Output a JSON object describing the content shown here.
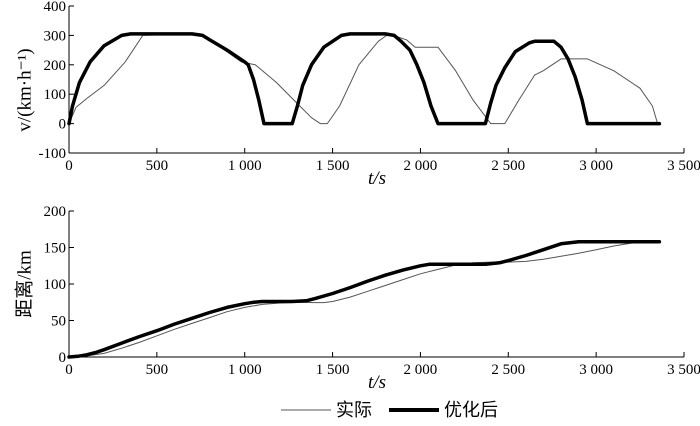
{
  "chart_data": [
    {
      "type": "line",
      "title": "",
      "xlabel": "t/s",
      "ylabel": "v/(km·h⁻¹)",
      "xlim": [
        0,
        3500
      ],
      "ylim": [
        -100,
        400
      ],
      "grid": false,
      "x_ticks": [
        0,
        500,
        1000,
        1500,
        2000,
        2500,
        3000,
        3500
      ],
      "x_tick_labels": [
        "0",
        "500",
        "1 000",
        "1 500",
        "2 000",
        "2 500",
        "3 000",
        "3 500"
      ],
      "y_ticks": [
        -100,
        0,
        100,
        200,
        300,
        400
      ],
      "y_tick_labels": [
        "-100",
        "0",
        "100",
        "200",
        "300",
        "400"
      ],
      "series": [
        {
          "name": "实际",
          "style": "thin",
          "x": [
            0,
            40,
            100,
            200,
            320,
            420,
            700,
            740,
            850,
            980,
            1060,
            1180,
            1280,
            1380,
            1430,
            1470,
            1540,
            1650,
            1760,
            1820,
            1920,
            1970,
            2100,
            2200,
            2300,
            2400,
            2440,
            2480,
            2560,
            2650,
            2700,
            2800,
            2900,
            2950,
            3100,
            3250,
            3320,
            3350
          ],
          "y": [
            0,
            55,
            85,
            130,
            210,
            300,
            305,
            305,
            265,
            210,
            200,
            140,
            80,
            20,
            0,
            0,
            60,
            200,
            280,
            305,
            285,
            260,
            260,
            180,
            80,
            0,
            0,
            0,
            80,
            165,
            180,
            220,
            220,
            220,
            180,
            120,
            60,
            0
          ]
        },
        {
          "name": "优化后",
          "style": "thick",
          "x": [
            0,
            20,
            60,
            120,
            200,
            300,
            350,
            400,
            500,
            600,
            700,
            760,
            800,
            900,
            1000,
            1020,
            1050,
            1080,
            1110,
            1270,
            1300,
            1330,
            1380,
            1450,
            1550,
            1600,
            1650,
            1800,
            1850,
            1890,
            1940,
            1980,
            2020,
            2060,
            2100,
            2370,
            2400,
            2430,
            2480,
            2540,
            2620,
            2650,
            2700,
            2760,
            2800,
            2840,
            2880,
            2920,
            2950,
            3360
          ],
          "y": [
            0,
            60,
            140,
            210,
            265,
            300,
            305,
            305,
            305,
            305,
            305,
            300,
            285,
            250,
            210,
            200,
            150,
            80,
            0,
            0,
            60,
            130,
            200,
            260,
            300,
            305,
            305,
            305,
            300,
            280,
            250,
            200,
            140,
            60,
            0,
            0,
            70,
            130,
            190,
            245,
            275,
            280,
            280,
            280,
            260,
            220,
            160,
            80,
            0,
            0
          ]
        }
      ]
    },
    {
      "type": "line",
      "title": "",
      "xlabel": "t/s",
      "ylabel": "距离/km",
      "xlim": [
        0,
        3500
      ],
      "ylim": [
        0,
        200
      ],
      "grid": false,
      "x_ticks": [
        0,
        500,
        1000,
        1500,
        2000,
        2500,
        3000,
        3500
      ],
      "x_tick_labels": [
        "0",
        "500",
        "1 000",
        "1 500",
        "2 000",
        "2 500",
        "3 000",
        "3 500"
      ],
      "y_ticks": [
        0,
        50,
        100,
        150,
        200
      ],
      "y_tick_labels": [
        "0",
        "50",
        "100",
        "150",
        "200"
      ],
      "series": [
        {
          "name": "实际",
          "style": "thin",
          "x": [
            0,
            100,
            200,
            300,
            400,
            500,
            600,
            700,
            800,
            900,
            1000,
            1100,
            1200,
            1300,
            1400,
            1450,
            1500,
            1600,
            1700,
            1800,
            1900,
            2000,
            2100,
            2200,
            2300,
            2400,
            2500,
            2600,
            2700,
            2800,
            2900,
            3000,
            3100,
            3200,
            3300,
            3350
          ],
          "y": [
            0,
            1.5,
            5,
            12,
            20,
            29,
            38,
            46,
            54,
            62,
            68,
            72,
            74,
            75,
            74.5,
            74.5,
            76,
            82,
            90,
            98,
            106,
            114,
            120,
            126,
            129,
            130,
            130,
            131,
            134,
            138,
            142,
            147,
            152,
            156,
            158,
            158
          ]
        },
        {
          "name": "优化后",
          "style": "thick",
          "x": [
            0,
            50,
            100,
            150,
            200,
            300,
            400,
            500,
            600,
            700,
            800,
            900,
            1000,
            1050,
            1100,
            1200,
            1270,
            1350,
            1400,
            1500,
            1600,
            1700,
            1800,
            1900,
            2000,
            2050,
            2100,
            2200,
            2300,
            2370,
            2450,
            2500,
            2600,
            2700,
            2800,
            2900,
            2950,
            3000,
            3100,
            3200,
            3300,
            3360
          ],
          "y": [
            0,
            1,
            3,
            6,
            10,
            19,
            28,
            36,
            45,
            53,
            61,
            68,
            73,
            75,
            76,
            76,
            76,
            77,
            80,
            87,
            95,
            104,
            112,
            119,
            125,
            127,
            127,
            127,
            127,
            127,
            129,
            132,
            139,
            147,
            155,
            158,
            158,
            158,
            158,
            158,
            158,
            158
          ]
        }
      ]
    }
  ],
  "legend": {
    "position": "bottom-center",
    "items": [
      {
        "label": "实际",
        "style": "thin"
      },
      {
        "label": "优化后",
        "style": "thick"
      }
    ]
  },
  "colors": {
    "line": "#000000",
    "thin_line": "#555555",
    "axis": "#000000"
  }
}
